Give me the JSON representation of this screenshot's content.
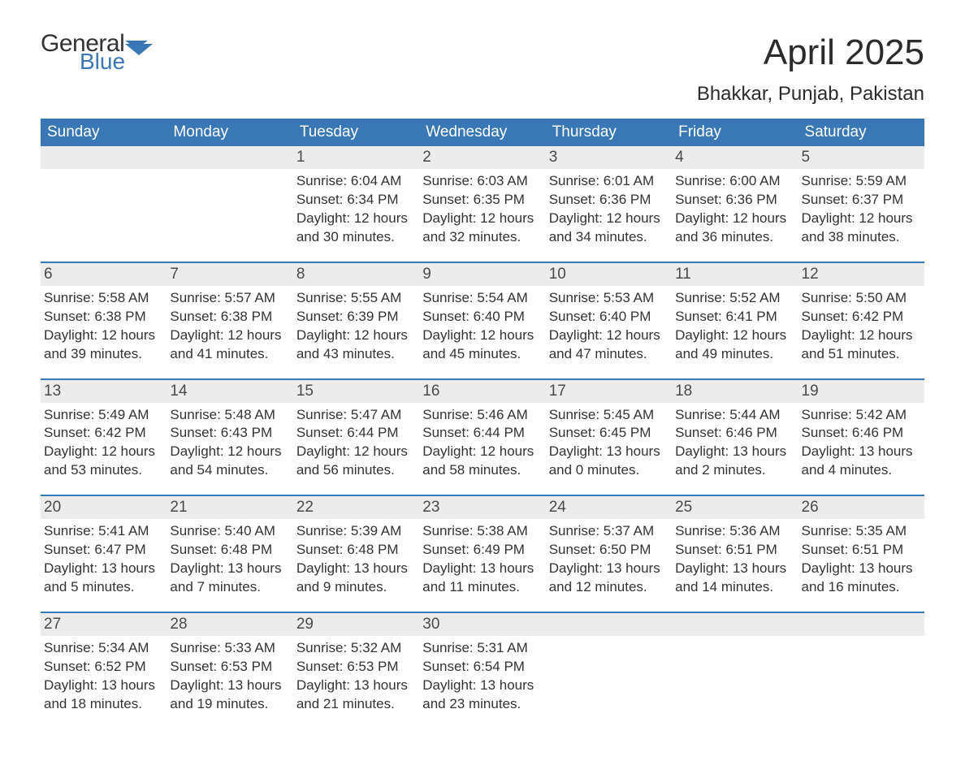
{
  "brand": {
    "line1": "General",
    "line2": "Blue"
  },
  "title": "April 2025",
  "location": "Bhakkar, Punjab, Pakistan",
  "colors": {
    "header_bg": "#3a78b5",
    "header_text": "#ffffff",
    "daynum_bg": "#ececec",
    "body_text": "#333333",
    "page_bg": "#ffffff",
    "rule": "#3a78b5"
  },
  "fonts": {
    "title_size_pt": 33,
    "location_size_pt": 18,
    "weekday_size_pt": 14,
    "body_size_pt": 13
  },
  "weekdays": [
    "Sunday",
    "Monday",
    "Tuesday",
    "Wednesday",
    "Thursday",
    "Friday",
    "Saturday"
  ],
  "weeks": [
    [
      null,
      null,
      {
        "n": "1",
        "sunrise": "6:04 AM",
        "sunset": "6:34 PM",
        "daylight": "12 hours and 30 minutes."
      },
      {
        "n": "2",
        "sunrise": "6:03 AM",
        "sunset": "6:35 PM",
        "daylight": "12 hours and 32 minutes."
      },
      {
        "n": "3",
        "sunrise": "6:01 AM",
        "sunset": "6:36 PM",
        "daylight": "12 hours and 34 minutes."
      },
      {
        "n": "4",
        "sunrise": "6:00 AM",
        "sunset": "6:36 PM",
        "daylight": "12 hours and 36 minutes."
      },
      {
        "n": "5",
        "sunrise": "5:59 AM",
        "sunset": "6:37 PM",
        "daylight": "12 hours and 38 minutes."
      }
    ],
    [
      {
        "n": "6",
        "sunrise": "5:58 AM",
        "sunset": "6:38 PM",
        "daylight": "12 hours and 39 minutes."
      },
      {
        "n": "7",
        "sunrise": "5:57 AM",
        "sunset": "6:38 PM",
        "daylight": "12 hours and 41 minutes."
      },
      {
        "n": "8",
        "sunrise": "5:55 AM",
        "sunset": "6:39 PM",
        "daylight": "12 hours and 43 minutes."
      },
      {
        "n": "9",
        "sunrise": "5:54 AM",
        "sunset": "6:40 PM",
        "daylight": "12 hours and 45 minutes."
      },
      {
        "n": "10",
        "sunrise": "5:53 AM",
        "sunset": "6:40 PM",
        "daylight": "12 hours and 47 minutes."
      },
      {
        "n": "11",
        "sunrise": "5:52 AM",
        "sunset": "6:41 PM",
        "daylight": "12 hours and 49 minutes."
      },
      {
        "n": "12",
        "sunrise": "5:50 AM",
        "sunset": "6:42 PM",
        "daylight": "12 hours and 51 minutes."
      }
    ],
    [
      {
        "n": "13",
        "sunrise": "5:49 AM",
        "sunset": "6:42 PM",
        "daylight": "12 hours and 53 minutes."
      },
      {
        "n": "14",
        "sunrise": "5:48 AM",
        "sunset": "6:43 PM",
        "daylight": "12 hours and 54 minutes."
      },
      {
        "n": "15",
        "sunrise": "5:47 AM",
        "sunset": "6:44 PM",
        "daylight": "12 hours and 56 minutes."
      },
      {
        "n": "16",
        "sunrise": "5:46 AM",
        "sunset": "6:44 PM",
        "daylight": "12 hours and 58 minutes."
      },
      {
        "n": "17",
        "sunrise": "5:45 AM",
        "sunset": "6:45 PM",
        "daylight": "13 hours and 0 minutes."
      },
      {
        "n": "18",
        "sunrise": "5:44 AM",
        "sunset": "6:46 PM",
        "daylight": "13 hours and 2 minutes."
      },
      {
        "n": "19",
        "sunrise": "5:42 AM",
        "sunset": "6:46 PM",
        "daylight": "13 hours and 4 minutes."
      }
    ],
    [
      {
        "n": "20",
        "sunrise": "5:41 AM",
        "sunset": "6:47 PM",
        "daylight": "13 hours and 5 minutes."
      },
      {
        "n": "21",
        "sunrise": "5:40 AM",
        "sunset": "6:48 PM",
        "daylight": "13 hours and 7 minutes."
      },
      {
        "n": "22",
        "sunrise": "5:39 AM",
        "sunset": "6:48 PM",
        "daylight": "13 hours and 9 minutes."
      },
      {
        "n": "23",
        "sunrise": "5:38 AM",
        "sunset": "6:49 PM",
        "daylight": "13 hours and 11 minutes."
      },
      {
        "n": "24",
        "sunrise": "5:37 AM",
        "sunset": "6:50 PM",
        "daylight": "13 hours and 12 minutes."
      },
      {
        "n": "25",
        "sunrise": "5:36 AM",
        "sunset": "6:51 PM",
        "daylight": "13 hours and 14 minutes."
      },
      {
        "n": "26",
        "sunrise": "5:35 AM",
        "sunset": "6:51 PM",
        "daylight": "13 hours and 16 minutes."
      }
    ],
    [
      {
        "n": "27",
        "sunrise": "5:34 AM",
        "sunset": "6:52 PM",
        "daylight": "13 hours and 18 minutes."
      },
      {
        "n": "28",
        "sunrise": "5:33 AM",
        "sunset": "6:53 PM",
        "daylight": "13 hours and 19 minutes."
      },
      {
        "n": "29",
        "sunrise": "5:32 AM",
        "sunset": "6:53 PM",
        "daylight": "13 hours and 21 minutes."
      },
      {
        "n": "30",
        "sunrise": "5:31 AM",
        "sunset": "6:54 PM",
        "daylight": "13 hours and 23 minutes."
      },
      null,
      null,
      null
    ]
  ],
  "labels": {
    "sunrise": "Sunrise: ",
    "sunset": "Sunset: ",
    "daylight": "Daylight: "
  }
}
